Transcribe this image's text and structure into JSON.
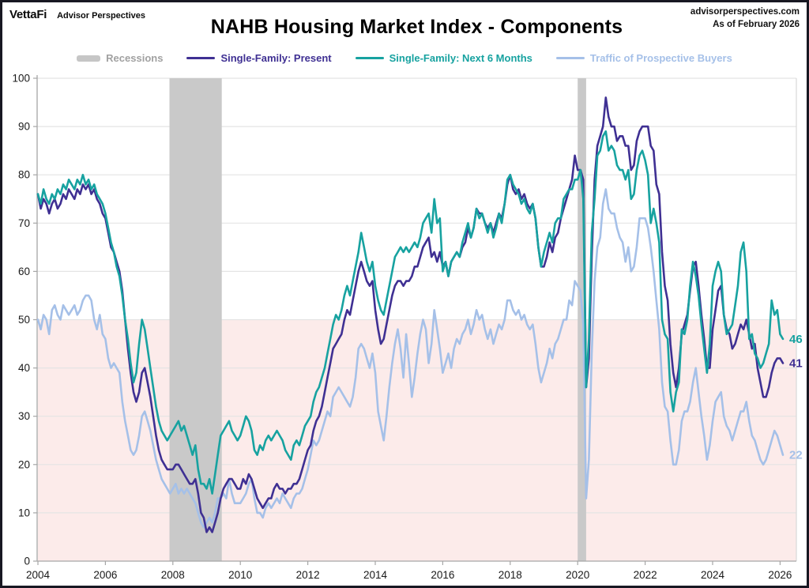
{
  "header": {
    "logo_primary": "VettaFi",
    "logo_secondary": "Advisor Perspectives",
    "source": "advisorperspectives.com",
    "as_of": "As of February 2026"
  },
  "title": "NAHB Housing Market Index - Components",
  "legend": [
    {
      "label": "Recessions",
      "color": "#c6c6c6",
      "text_color": "#a1a1a1",
      "type": "band"
    },
    {
      "label": "Single-Family: Present",
      "color": "#3f3093",
      "type": "line"
    },
    {
      "label": "Single-Family: Next 6 Months",
      "color": "#17a2a0",
      "type": "line"
    },
    {
      "label": "Traffic of Prospective Buyers",
      "color": "#a5c0e8",
      "type": "line"
    }
  ],
  "chart_data": {
    "type": "line",
    "title": "NAHB Housing Market Index - Components",
    "x_start": 2004.0,
    "x_step_months": 1,
    "x_ticks": [
      2004,
      2006,
      2008,
      2010,
      2012,
      2014,
      2016,
      2018,
      2020,
      2022,
      2024,
      2026
    ],
    "ylim": [
      0,
      100
    ],
    "y_ticks": [
      0,
      10,
      20,
      30,
      40,
      50,
      60,
      70,
      80,
      90,
      100
    ],
    "grid": true,
    "below_50_shading": {
      "from": 0,
      "to": 50,
      "color": "#fcebea"
    },
    "recession_color": "#c9c9c9",
    "recessions": [
      [
        2007.9,
        2009.45
      ],
      [
        2020.0,
        2020.25
      ]
    ],
    "series": [
      {
        "name": "Single-Family: Present",
        "color": "#3f3093",
        "end_label": "41",
        "values": [
          76,
          73,
          75,
          74,
          72,
          74,
          75,
          73,
          74,
          76,
          75,
          77,
          76,
          75,
          77,
          76,
          78,
          77,
          78,
          76,
          77,
          75,
          74,
          72,
          71,
          68,
          65,
          64,
          62,
          60,
          56,
          50,
          44,
          39,
          35,
          33,
          35,
          39,
          40,
          37,
          34,
          30,
          26,
          23,
          21,
          20,
          19,
          19,
          19,
          20,
          20,
          19,
          18,
          17,
          16,
          16,
          17,
          14,
          10,
          9,
          6,
          7,
          6,
          8,
          10,
          13,
          15,
          16,
          17,
          17,
          16,
          15,
          15,
          17,
          16,
          18,
          17,
          15,
          13,
          12,
          11,
          12,
          13,
          13,
          15,
          16,
          15,
          15,
          14,
          15,
          15,
          16,
          16,
          17,
          19,
          21,
          23,
          24,
          27,
          29,
          30,
          32,
          35,
          38,
          41,
          44,
          45,
          46,
          47,
          50,
          52,
          51,
          54,
          57,
          60,
          62,
          60,
          58,
          57,
          58,
          52,
          48,
          45,
          46,
          49,
          52,
          55,
          57,
          58,
          58,
          57,
          58,
          58,
          59,
          61,
          61,
          63,
          65,
          66,
          67,
          63,
          64,
          62,
          64,
          61,
          62,
          59,
          62,
          63,
          64,
          63,
          65,
          66,
          69,
          67,
          69,
          73,
          72,
          72,
          70,
          69,
          70,
          68,
          70,
          72,
          71,
          74,
          78,
          80,
          77,
          76,
          77,
          75,
          76,
          74,
          73,
          74,
          71,
          65,
          61,
          61,
          63,
          66,
          64,
          67,
          68,
          71,
          73,
          75,
          77,
          79,
          84,
          81,
          81,
          79,
          36,
          42,
          63,
          79,
          86,
          88,
          90,
          96,
          92,
          90,
          90,
          87,
          88,
          88,
          86,
          86,
          81,
          82,
          87,
          89,
          90,
          90,
          90,
          86,
          85,
          78,
          76,
          64,
          57,
          54,
          45,
          39,
          36,
          40,
          47,
          49,
          51,
          56,
          61,
          62,
          57,
          51,
          46,
          40,
          40,
          48,
          52,
          56,
          57,
          51,
          48,
          47,
          44,
          45,
          47,
          49,
          48,
          50,
          47,
          44,
          45,
          40,
          37,
          34,
          34,
          36,
          39,
          41,
          42,
          42,
          41
        ]
      },
      {
        "name": "Single-Family: Next 6 Months",
        "color": "#17a2a0",
        "end_label": "46",
        "values": [
          76,
          74,
          77,
          75,
          74,
          76,
          75,
          77,
          76,
          78,
          77,
          79,
          78,
          77,
          79,
          78,
          80,
          78,
          79,
          77,
          78,
          76,
          75,
          74,
          72,
          69,
          66,
          64,
          61,
          59,
          55,
          50,
          46,
          41,
          37,
          39,
          45,
          50,
          48,
          44,
          40,
          36,
          32,
          29,
          27,
          26,
          25,
          26,
          27,
          28,
          29,
          27,
          28,
          26,
          24,
          22,
          24,
          19,
          16,
          16,
          15,
          17,
          14,
          18,
          22,
          26,
          27,
          28,
          29,
          27,
          26,
          25,
          26,
          28,
          30,
          29,
          27,
          23,
          22,
          24,
          23,
          25,
          26,
          25,
          26,
          27,
          26,
          25,
          23,
          22,
          21,
          24,
          25,
          24,
          26,
          28,
          29,
          30,
          33,
          35,
          36,
          38,
          40,
          43,
          46,
          49,
          51,
          50,
          52,
          55,
          57,
          55,
          58,
          61,
          64,
          68,
          65,
          62,
          60,
          62,
          57,
          54,
          52,
          51,
          54,
          57,
          60,
          63,
          64,
          65,
          64,
          65,
          64,
          65,
          66,
          65,
          67,
          70,
          71,
          72,
          68,
          75,
          70,
          71,
          60,
          62,
          59,
          62,
          63,
          64,
          63,
          66,
          68,
          70,
          67,
          69,
          73,
          71,
          72,
          70,
          68,
          70,
          67,
          69,
          72,
          70,
          74,
          79,
          80,
          78,
          77,
          76,
          74,
          75,
          73,
          72,
          74,
          71,
          65,
          61,
          64,
          66,
          68,
          66,
          70,
          71,
          71,
          75,
          76,
          77,
          77,
          79,
          79,
          81,
          75,
          36,
          46,
          68,
          75,
          84,
          85,
          88,
          89,
          85,
          86,
          85,
          82,
          81,
          81,
          79,
          81,
          75,
          76,
          81,
          84,
          85,
          83,
          80,
          70,
          73,
          70,
          66,
          50,
          47,
          46,
          35,
          31,
          35,
          37,
          48,
          47,
          50,
          57,
          62,
          59,
          55,
          49,
          44,
          39,
          45,
          57,
          60,
          62,
          60,
          51,
          47,
          48,
          49,
          53,
          57,
          64,
          66,
          60,
          46,
          47,
          43,
          42,
          40,
          41,
          43,
          45,
          54,
          51,
          52,
          47,
          46
        ]
      },
      {
        "name": "Traffic of Prospective Buyers",
        "color": "#a5c0e8",
        "end_label": "22",
        "values": [
          50,
          48,
          51,
          50,
          47,
          52,
          53,
          51,
          50,
          53,
          52,
          51,
          52,
          53,
          51,
          52,
          54,
          55,
          55,
          54,
          50,
          48,
          51,
          47,
          46,
          42,
          40,
          41,
          40,
          39,
          33,
          29,
          26,
          23,
          22,
          23,
          26,
          30,
          31,
          29,
          27,
          24,
          21,
          19,
          17,
          16,
          15,
          14,
          15,
          16,
          14,
          15,
          14,
          15,
          14,
          13,
          12,
          10,
          8,
          7,
          8,
          9,
          8,
          10,
          13,
          13,
          14,
          13,
          17,
          14,
          12,
          12,
          12,
          13,
          14,
          16,
          17,
          13,
          10,
          10,
          9,
          11,
          12,
          11,
          12,
          13,
          12,
          14,
          13,
          12,
          11,
          13,
          14,
          14,
          15,
          17,
          19,
          22,
          25,
          24,
          25,
          27,
          29,
          31,
          30,
          34,
          35,
          36,
          35,
          34,
          33,
          32,
          34,
          38,
          44,
          45,
          44,
          42,
          40,
          43,
          39,
          31,
          28,
          25,
          30,
          36,
          41,
          45,
          48,
          44,
          38,
          47,
          41,
          34,
          38,
          43,
          47,
          50,
          48,
          41,
          45,
          52,
          48,
          44,
          39,
          41,
          43,
          40,
          44,
          46,
          45,
          47,
          48,
          50,
          47,
          49,
          52,
          50,
          51,
          48,
          46,
          48,
          45,
          47,
          49,
          48,
          50,
          54,
          54,
          52,
          51,
          52,
          50,
          51,
          49,
          48,
          49,
          45,
          40,
          37,
          39,
          41,
          44,
          42,
          45,
          46,
          48,
          50,
          50,
          54,
          53,
          58,
          57,
          56,
          49,
          13,
          21,
          43,
          58,
          65,
          67,
          74,
          77,
          73,
          72,
          72,
          69,
          67,
          66,
          62,
          65,
          60,
          61,
          65,
          71,
          71,
          71,
          69,
          65,
          60,
          54,
          48,
          37,
          32,
          31,
          25,
          20,
          20,
          23,
          29,
          31,
          31,
          33,
          37,
          40,
          35,
          30,
          26,
          21,
          24,
          29,
          33,
          34,
          35,
          30,
          28,
          27,
          25,
          27,
          29,
          31,
          31,
          33,
          29,
          26,
          25,
          23,
          21,
          20,
          21,
          23,
          25,
          27,
          26,
          24,
          22
        ]
      }
    ]
  }
}
